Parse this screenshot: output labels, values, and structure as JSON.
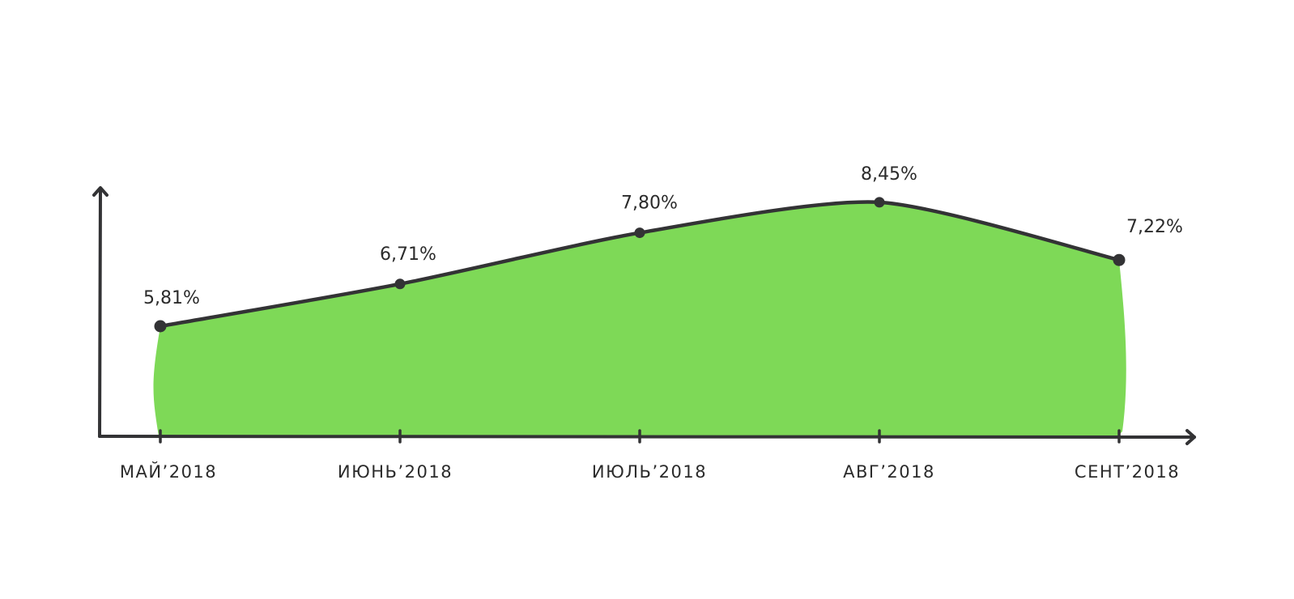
{
  "chart_data": {
    "type": "area",
    "categories": [
      "МАЙ’2018",
      "ИЮНЬ’2018",
      "ИЮЛЬ’2018",
      "АВГ’2018",
      "СЕНТ’2018"
    ],
    "values": [
      5.81,
      6.71,
      7.8,
      8.45,
      7.22
    ],
    "data_labels": [
      "5,81%",
      "6,71%",
      "7,80%",
      "8,45%",
      "7,22%"
    ],
    "title": "",
    "xlabel": "",
    "ylabel": "",
    "grid": false,
    "legend": "none",
    "colors": {
      "fill": "#7ed957",
      "line": "#333335",
      "axis": "#333335"
    }
  }
}
